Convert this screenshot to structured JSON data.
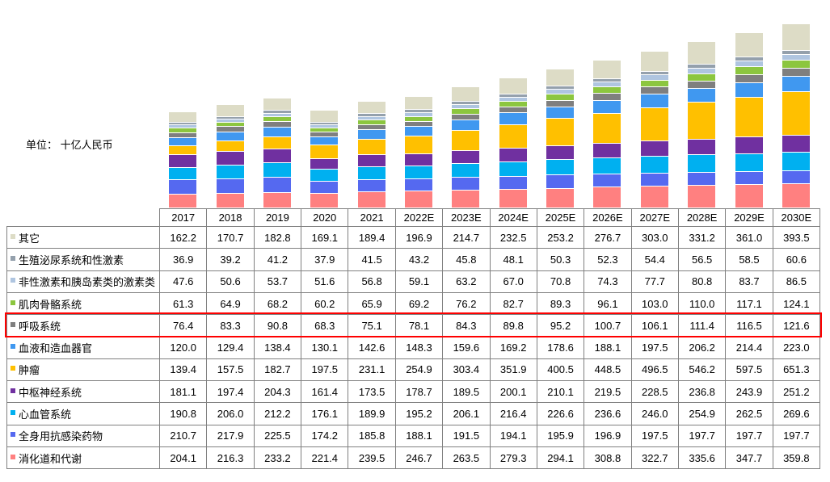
{
  "chart": {
    "unit_label": "单位： 十亿人民币",
    "highlight_row": "呼吸系统",
    "highlight_color": "#FF0000",
    "table_border_color": "#808080"
  },
  "chart_data": {
    "type": "bar",
    "stacked": true,
    "title": "",
    "xlabel": "",
    "ylabel": "单位： 十亿人民币",
    "value_axis_visible": false,
    "approx_total_range": [
      0,
      2900
    ],
    "grid": false,
    "legend_position": "table-left-column",
    "categories": [
      "2017",
      "2018",
      "2019",
      "2020",
      "2021",
      "2022E",
      "2023E",
      "2024E",
      "2025E",
      "2026E",
      "2027E",
      "2028E",
      "2029E",
      "2030E"
    ],
    "stack_note": "series listed table-top-first; bottom of each bar is the last series",
    "series": [
      {
        "name": "其它",
        "color": "#DDDCC6",
        "values": [
          162.2,
          170.7,
          182.8,
          169.1,
          189.4,
          196.9,
          214.7,
          232.5,
          253.2,
          276.7,
          303.0,
          331.2,
          361.0,
          393.5
        ]
      },
      {
        "name": "生殖泌尿系统和性激素",
        "color": "#94A0AC",
        "values": [
          36.9,
          39.2,
          41.2,
          37.9,
          41.5,
          43.2,
          45.8,
          48.1,
          50.3,
          52.3,
          54.4,
          56.5,
          58.5,
          60.6
        ]
      },
      {
        "name": "非性激素和胰岛素类的激素类",
        "color": "#AFC5E0",
        "values": [
          47.6,
          50.6,
          53.7,
          51.6,
          56.8,
          59.1,
          63.2,
          67.0,
          70.8,
          74.3,
          77.7,
          80.8,
          83.7,
          86.5
        ]
      },
      {
        "name": "肌肉骨骼系统",
        "color": "#8CC63F",
        "values": [
          61.3,
          64.9,
          68.2,
          60.2,
          65.9,
          69.2,
          76.2,
          82.7,
          89.3,
          96.1,
          103.0,
          110.0,
          117.1,
          124.1
        ]
      },
      {
        "name": "呼吸系统",
        "color": "#7F7F7F",
        "values": [
          76.4,
          83.3,
          90.8,
          68.3,
          75.1,
          78.1,
          84.3,
          89.8,
          95.2,
          100.7,
          106.1,
          111.4,
          116.5,
          121.6
        ]
      },
      {
        "name": "血液和造血器官",
        "color": "#4098F0",
        "values": [
          120.0,
          129.4,
          138.4,
          130.1,
          142.6,
          148.3,
          159.6,
          169.2,
          178.6,
          188.1,
          197.5,
          206.2,
          214.4,
          223.0
        ]
      },
      {
        "name": "肿瘤",
        "color": "#FFC000",
        "values": [
          139.4,
          157.5,
          182.7,
          197.5,
          231.1,
          254.9,
          303.4,
          351.9,
          400.5,
          448.5,
          496.5,
          546.2,
          597.5,
          651.3
        ]
      },
      {
        "name": "中枢神经系统",
        "color": "#7030A0",
        "values": [
          181.1,
          197.4,
          204.3,
          161.4,
          173.5,
          178.7,
          189.5,
          200.1,
          210.1,
          219.5,
          228.5,
          236.8,
          243.9,
          251.2
        ]
      },
      {
        "name": "心血管系统",
        "color": "#00B0F0",
        "values": [
          190.8,
          206.0,
          212.2,
          176.1,
          189.9,
          195.2,
          206.1,
          216.4,
          226.6,
          236.6,
          246.0,
          254.9,
          262.5,
          269.6
        ]
      },
      {
        "name": "全身用抗感染药物",
        "color": "#5569F0",
        "values": [
          210.7,
          217.9,
          225.5,
          174.2,
          185.8,
          188.1,
          191.5,
          194.1,
          195.9,
          196.9,
          197.5,
          197.7,
          197.7,
          197.7
        ]
      },
      {
        "name": "消化道和代谢",
        "color": "#FF8080",
        "values": [
          204.1,
          216.3,
          233.2,
          221.4,
          239.5,
          246.7,
          263.5,
          279.3,
          294.1,
          308.8,
          322.7,
          335.6,
          347.7,
          359.8
        ]
      }
    ]
  }
}
